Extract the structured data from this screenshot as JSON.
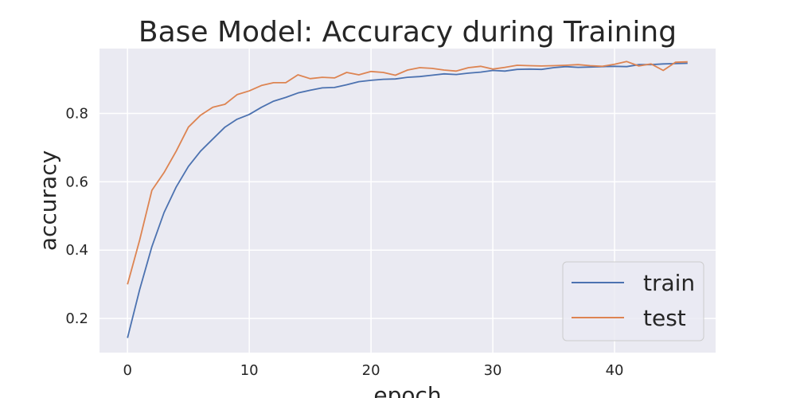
{
  "chart_data": {
    "type": "line",
    "title": "Base Model: Accuracy during Training",
    "xlabel": "epoch",
    "ylabel": "accuracy",
    "xlim": [
      -2.3,
      48.3
    ],
    "ylim": [
      0.1,
      0.99
    ],
    "xticks": [
      0,
      10,
      20,
      30,
      40
    ],
    "yticks": [
      0.2,
      0.4,
      0.6,
      0.8
    ],
    "grid": true,
    "legend_position": "lower-right",
    "colors": {
      "background": "#EAEAF2",
      "grid": "#FFFFFF",
      "train": "#4C72B0",
      "test": "#DD8452",
      "legend_border": "#CCCCCC"
    },
    "series": [
      {
        "name": "train",
        "x": [
          0,
          1,
          2,
          3,
          4,
          5,
          6,
          7,
          8,
          9,
          10,
          11,
          12,
          13,
          14,
          15,
          16,
          17,
          18,
          19,
          20,
          21,
          22,
          23,
          24,
          25,
          26,
          27,
          28,
          29,
          30,
          31,
          32,
          33,
          34,
          35,
          36,
          37,
          38,
          39,
          40,
          41,
          42,
          43,
          44,
          45,
          46
        ],
        "values": [
          0.143,
          0.285,
          0.41,
          0.51,
          0.585,
          0.645,
          0.69,
          0.725,
          0.76,
          0.783,
          0.797,
          0.818,
          0.836,
          0.847,
          0.86,
          0.868,
          0.875,
          0.876,
          0.884,
          0.893,
          0.897,
          0.9,
          0.901,
          0.906,
          0.908,
          0.912,
          0.916,
          0.914,
          0.918,
          0.921,
          0.926,
          0.924,
          0.929,
          0.93,
          0.929,
          0.934,
          0.937,
          0.935,
          0.936,
          0.937,
          0.938,
          0.937,
          0.943,
          0.943,
          0.945,
          0.946,
          0.947
        ]
      },
      {
        "name": "test",
        "x": [
          0,
          1,
          2,
          3,
          4,
          5,
          6,
          7,
          8,
          9,
          10,
          11,
          12,
          13,
          14,
          15,
          16,
          17,
          18,
          19,
          20,
          21,
          22,
          23,
          24,
          25,
          26,
          27,
          28,
          29,
          30,
          31,
          32,
          33,
          34,
          35,
          36,
          37,
          38,
          39,
          40,
          41,
          42,
          43,
          44,
          45,
          46
        ],
        "values": [
          0.3,
          0.43,
          0.575,
          0.627,
          0.69,
          0.76,
          0.795,
          0.818,
          0.827,
          0.855,
          0.866,
          0.882,
          0.89,
          0.89,
          0.913,
          0.902,
          0.906,
          0.904,
          0.92,
          0.913,
          0.923,
          0.92,
          0.912,
          0.927,
          0.934,
          0.932,
          0.927,
          0.924,
          0.934,
          0.938,
          0.93,
          0.935,
          0.941,
          0.94,
          0.939,
          0.94,
          0.941,
          0.943,
          0.94,
          0.938,
          0.944,
          0.952,
          0.939,
          0.945,
          0.926,
          0.95,
          0.951
        ]
      }
    ]
  }
}
